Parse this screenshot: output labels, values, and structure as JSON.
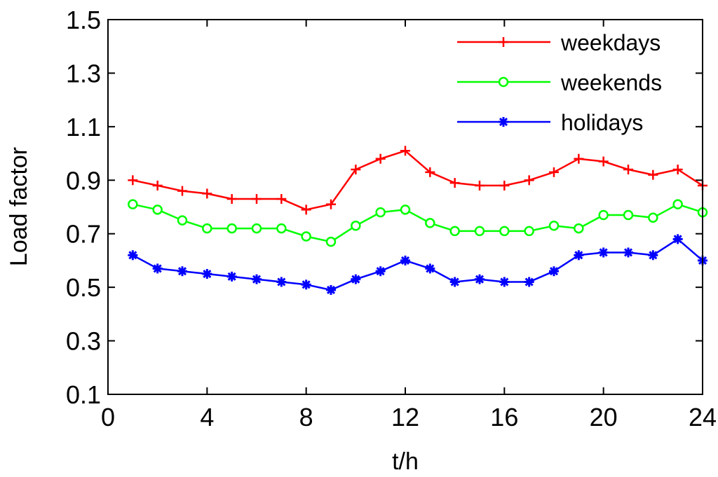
{
  "chart_data": {
    "type": "line",
    "title": "",
    "xlabel": "t/h",
    "ylabel": "Load factor",
    "xlim": [
      0,
      24
    ],
    "ylim": [
      0.1,
      1.5
    ],
    "xticks": [
      "0",
      "4",
      "8",
      "12",
      "16",
      "20",
      "24"
    ],
    "yticks": [
      "0.1",
      "0.3",
      "0.5",
      "0.7",
      "0.9",
      "1.1",
      "1.3",
      "1.5"
    ],
    "grid": false,
    "legend_position": "top-right",
    "x": [
      1,
      2,
      3,
      4,
      5,
      6,
      7,
      8,
      9,
      10,
      11,
      12,
      13,
      14,
      15,
      16,
      17,
      18,
      19,
      20,
      21,
      22,
      23,
      24
    ],
    "series": [
      {
        "name": "weekdays",
        "color": "#ff0000",
        "marker": "plus",
        "values": [
          0.9,
          0.88,
          0.86,
          0.85,
          0.83,
          0.83,
          0.83,
          0.79,
          0.81,
          0.94,
          0.98,
          1.01,
          0.93,
          0.89,
          0.88,
          0.88,
          0.9,
          0.93,
          0.98,
          0.97,
          0.94,
          0.92,
          0.94,
          0.88
        ]
      },
      {
        "name": "weekends",
        "color": "#00ff00",
        "marker": "circle",
        "values": [
          0.81,
          0.79,
          0.75,
          0.72,
          0.72,
          0.72,
          0.72,
          0.69,
          0.67,
          0.73,
          0.78,
          0.79,
          0.74,
          0.71,
          0.71,
          0.71,
          0.71,
          0.73,
          0.72,
          0.77,
          0.77,
          0.76,
          0.81,
          0.78
        ]
      },
      {
        "name": "holidays",
        "color": "#0000ff",
        "marker": "star",
        "values": [
          0.62,
          0.57,
          0.56,
          0.55,
          0.54,
          0.53,
          0.52,
          0.51,
          0.49,
          0.53,
          0.56,
          0.6,
          0.57,
          0.52,
          0.53,
          0.52,
          0.52,
          0.56,
          0.62,
          0.63,
          0.63,
          0.62,
          0.68,
          0.6
        ]
      }
    ]
  }
}
